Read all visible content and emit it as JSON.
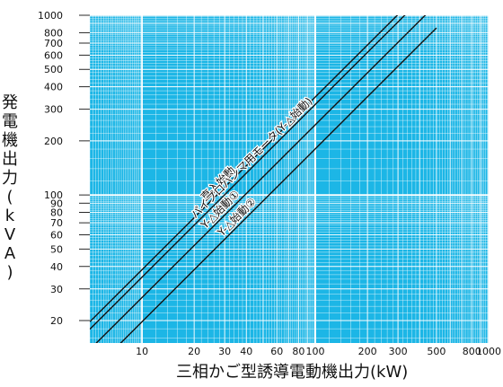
{
  "chart_data": {
    "type": "line",
    "title": "",
    "xlabel": "三相かご型誘導電動機出力(kW)",
    "ylabel": "発電機出力(kVA)",
    "xscale": "log",
    "yscale": "log",
    "xlim": [
      5,
      1000
    ],
    "ylim": [
      15,
      1000
    ],
    "grid": true,
    "background_color": "#1cb6e6",
    "grid_color": "#ffffff",
    "line_color": "#111111",
    "x_ticks": [
      10,
      20,
      30,
      40,
      60,
      80,
      100,
      200,
      300,
      500,
      800,
      1000
    ],
    "y_ticks": [
      20,
      30,
      40,
      50,
      60,
      70,
      80,
      90,
      100,
      200,
      300,
      400,
      500,
      600,
      700,
      800,
      1000
    ],
    "series": [
      {
        "name": "直入始動",
        "x": [
          5,
          500
        ],
        "y": [
          19.7,
          1650
        ]
      },
      {
        "name": "パイプロハンマ用モータ(Y-△始動)",
        "x": [
          5,
          500
        ],
        "y": [
          17.9,
          1500
        ]
      },
      {
        "name": "Y-△始動①",
        "x": [
          5,
          500
        ],
        "y": [
          13.8,
          1155
        ]
      },
      {
        "name": "Y-△始動②",
        "x": [
          5,
          500
        ],
        "y": [
          10.1,
          850
        ]
      }
    ]
  }
}
